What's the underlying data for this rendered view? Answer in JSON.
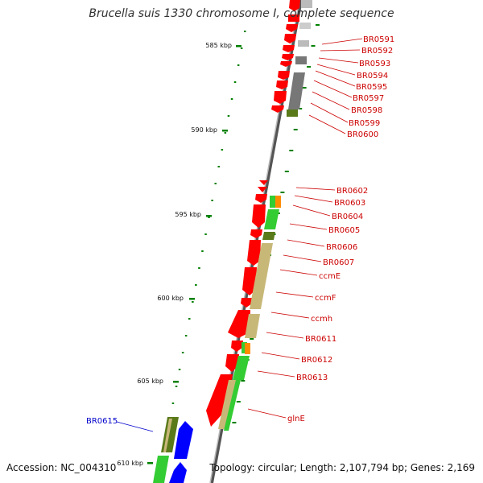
{
  "title": "Brucella suis 1330 chromosome I, complete sequence",
  "accession": "Accession: NC_004310",
  "topology": "Topology: circular; Length: 2,107,794 bp; Genes: 2,169",
  "colors": {
    "backbone": "#888888",
    "tick": "#008000",
    "gene_red": "#ff0000",
    "label_red": "#cc0000",
    "label_blue": "#0000cc",
    "cog_green": "#33cc33",
    "cog_olive": "#5a7a1a",
    "cog_tan": "#c8b878",
    "cog_orange": "#ff8c00",
    "cog_gray": "#777777",
    "cog_lightgray": "#cccccc",
    "cog_blue": "#0000ff"
  },
  "scale_labels": [
    "585 kbp",
    "590 kbp",
    "595 kbp",
    "600 kbp",
    "605 kbp",
    "610 kbp"
  ],
  "gene_labels": [
    {
      "name": "BR0591",
      "color": "red"
    },
    {
      "name": "BR0592",
      "color": "red"
    },
    {
      "name": "BR0593",
      "color": "red"
    },
    {
      "name": "BR0594",
      "color": "red"
    },
    {
      "name": "BR0595",
      "color": "red"
    },
    {
      "name": "BR0597",
      "color": "red"
    },
    {
      "name": "BR0598",
      "color": "red"
    },
    {
      "name": "BR0599",
      "color": "red"
    },
    {
      "name": "BR0600",
      "color": "red"
    },
    {
      "name": "BR0602",
      "color": "red"
    },
    {
      "name": "BR0603",
      "color": "red"
    },
    {
      "name": "BR0604",
      "color": "red"
    },
    {
      "name": "BR0605",
      "color": "red"
    },
    {
      "name": "BR0606",
      "color": "red"
    },
    {
      "name": "BR0607",
      "color": "red"
    },
    {
      "name": "ccmE",
      "color": "red"
    },
    {
      "name": "ccmF",
      "color": "red"
    },
    {
      "name": "ccmh",
      "color": "red"
    },
    {
      "name": "BR0611",
      "color": "red"
    },
    {
      "name": "BR0612",
      "color": "red"
    },
    {
      "name": "BR0613",
      "color": "red"
    },
    {
      "name": "glnE",
      "color": "red"
    },
    {
      "name": "BR0615",
      "color": "blue"
    }
  ]
}
